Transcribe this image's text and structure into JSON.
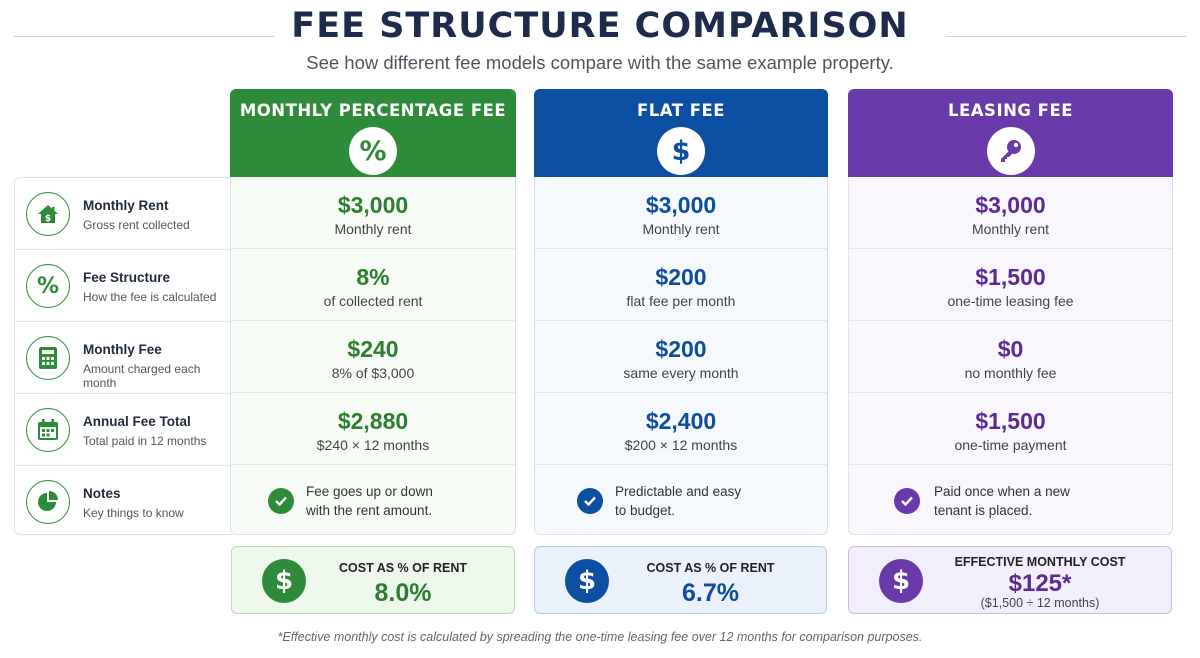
{
  "header": {
    "title": "FEE STRUCTURE COMPARISON",
    "subtitle": "See how different fee models compare with the same example property."
  },
  "rows": [
    {
      "title": "Monthly Rent",
      "desc": "Gross rent collected",
      "icon": "house-dollar-icon"
    },
    {
      "title": "Fee Structure",
      "desc": "How the fee is calculated",
      "icon": "percent-icon"
    },
    {
      "title": "Monthly Fee",
      "desc": "Amount charged each month",
      "icon": "calculator-icon"
    },
    {
      "title": "Annual Fee Total",
      "desc": "Total paid in 12 months",
      "icon": "calendar-icon"
    },
    {
      "title": "Notes",
      "desc": "Key things to know",
      "icon": "pie-chart-icon"
    }
  ],
  "columns": [
    {
      "title": "MONTHLY PERCENTAGE FEE",
      "badge": "%",
      "icon": "percent-icon",
      "color": "#2e8b3a",
      "cells": [
        {
          "value": "$3,000",
          "sub": "Monthly rent"
        },
        {
          "value": "8%",
          "sub": "of collected rent"
        },
        {
          "value": "$240",
          "sub": "8% of $3,000"
        },
        {
          "value": "$2,880",
          "sub": "$240 × 12 months"
        }
      ],
      "note": [
        "Fee goes up or down",
        "with the rent amount."
      ],
      "summary": {
        "label": "COST AS % OF RENT",
        "value": "8.0%",
        "icon": "dollar-icon"
      }
    },
    {
      "title": "FLAT FEE",
      "badge": "$",
      "icon": "dollar-icon",
      "color": "#0b4ea2",
      "cells": [
        {
          "value": "$3,000",
          "sub": "Monthly rent"
        },
        {
          "value": "$200",
          "sub": "flat fee per month"
        },
        {
          "value": "$200",
          "sub": "same every month"
        },
        {
          "value": "$2,400",
          "sub": "$200 × 12 months"
        }
      ],
      "note": [
        "Predictable and easy",
        "to budget."
      ],
      "summary": {
        "label": "COST AS % OF RENT",
        "value": "6.7%",
        "icon": "dollar-icon"
      }
    },
    {
      "title": "LEASING FEE",
      "badge": "",
      "icon": "key-icon",
      "color": "#6a3aaa",
      "cells": [
        {
          "value": "$3,000",
          "sub": "Monthly rent"
        },
        {
          "value": "$1,500",
          "sub": "one-time leasing fee"
        },
        {
          "value": "$0",
          "sub": "no monthly fee"
        },
        {
          "value": "$1,500",
          "sub": "one-time payment"
        }
      ],
      "note": [
        "Paid once when a new",
        "tenant is placed."
      ],
      "summary": {
        "label": "EFFECTIVE MONTHLY COST",
        "value": "$125*",
        "note": "($1,500 ÷ 12 months)",
        "icon": "dollar-icon"
      }
    }
  ],
  "footnote": "*Effective monthly cost is calculated by spreading the one-time leasing fee over 12 months for comparison purposes."
}
